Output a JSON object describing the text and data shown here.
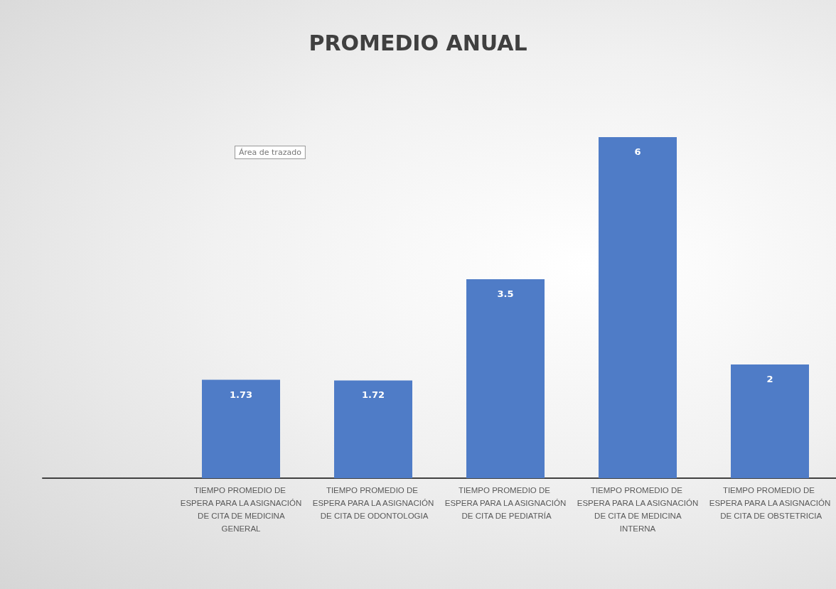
{
  "chart_data": {
    "type": "bar",
    "title": "PROMEDIO ANUAL",
    "categories": [
      null,
      "TIEMPO PROMEDIO DE ESPERA PARA LA ASIGNACIÓN DE CITA DE MEDICINA GENERAL",
      "TIEMPO PROMEDIO DE ESPERA PARA LA ASIGNACIÓN DE CITA DE ODONTOLOGIA",
      "TIEMPO PROMEDIO DE ESPERA PARA LA ASIGNACIÓN DE CITA DE PEDIATRÍA",
      "TIEMPO PROMEDIO DE ESPERA PARA LA ASIGNACIÓN DE CITA DE MEDICINA INTERNA",
      "TIEMPO PROMEDIO DE ESPERA PARA LA ASIGNACIÓN DE CITA DE OBSTETRICIA"
    ],
    "values": [
      null,
      1.73,
      1.72,
      3.5,
      6,
      2
    ],
    "color": "#4f7cc7",
    "data_labels": true,
    "annotations": [
      "Área de trazado"
    ]
  }
}
